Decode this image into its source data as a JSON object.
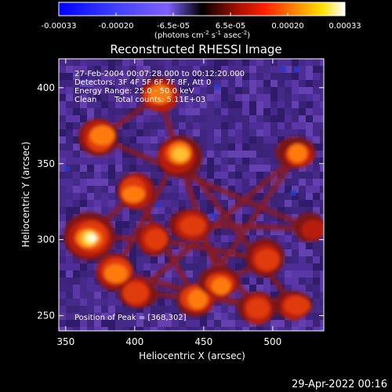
{
  "colorbar": {
    "ticks": [
      "-0.00033",
      "-0.00020",
      "-6.5e-05",
      "6.5e-05",
      "0.00020",
      "0.00033"
    ],
    "unit_label": "(photons cm",
    "unit_sup1": "-2",
    "unit_mid": " s",
    "unit_sup2": "-1",
    "unit_mid2": " asec",
    "unit_sup3": "-2",
    "unit_end": ")",
    "range": [
      -0.00033,
      0.00033
    ]
  },
  "chart_data": {
    "type": "heatmap",
    "title": "Reconstructed RHESSI Image",
    "xlabel": "Heliocentric X (arcsec)",
    "ylabel": "Heliocentric Y (arcsec)",
    "xlim": [
      345,
      537
    ],
    "ylim": [
      240,
      419
    ],
    "x_ticks": [
      350,
      400,
      450,
      500
    ],
    "y_ticks": [
      250,
      300,
      350,
      400
    ],
    "annotations": {
      "time_range": "27-Feb-2004 00:07:28.000 to 00:12:20.000",
      "detectors": "Detectors: 3F 4F 5F 6F 7F 8F, Att 0",
      "energy": "Energy Range: 25.0 - 50.0 keV",
      "method": "Clean",
      "counts": "Total counts: 5.11E+03",
      "peak": "Position of Peak = [368,302]"
    },
    "bright_sources": [
      {
        "x": 368,
        "y": 302,
        "value": 0.00033
      },
      {
        "x": 375,
        "y": 367,
        "value": 0.00026
      },
      {
        "x": 432,
        "y": 356,
        "value": 0.00027
      },
      {
        "x": 400,
        "y": 331,
        "value": 0.00026
      },
      {
        "x": 418,
        "y": 395,
        "value": 0.00022
      },
      {
        "x": 386,
        "y": 279,
        "value": 0.00022
      },
      {
        "x": 445,
        "y": 260,
        "value": 0.00024
      },
      {
        "x": 462,
        "y": 271,
        "value": 0.00021
      },
      {
        "x": 488,
        "y": 255,
        "value": 0.0002
      },
      {
        "x": 518,
        "y": 356,
        "value": 0.00021
      },
      {
        "x": 496,
        "y": 287,
        "value": 0.00018
      },
      {
        "x": 441,
        "y": 310,
        "value": 0.00017
      },
      {
        "x": 402,
        "y": 265,
        "value": 0.00016
      },
      {
        "x": 414,
        "y": 300,
        "value": 0.00018
      },
      {
        "x": 528,
        "y": 307,
        "value": 0.00012
      },
      {
        "x": 516,
        "y": 256,
        "value": 0.00015
      }
    ]
  },
  "footer": {
    "timestamp": "29-Apr-2022 00:16"
  }
}
